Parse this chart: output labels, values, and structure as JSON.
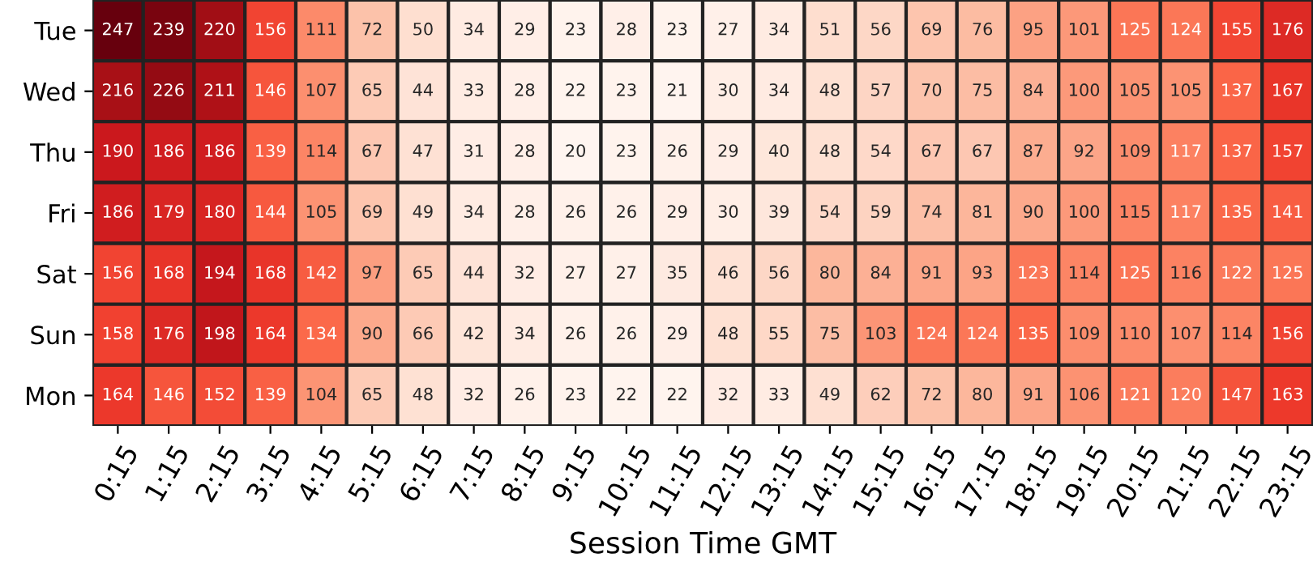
{
  "chart_data": {
    "type": "heatmap",
    "xlabel": "Session Time GMT",
    "categories": [
      "0:15",
      "1:15",
      "2:15",
      "3:15",
      "4:15",
      "5:15",
      "6:15",
      "7:15",
      "8:15",
      "9:15",
      "10:15",
      "11:15",
      "12:15",
      "13:15",
      "14:15",
      "15:15",
      "16:15",
      "17:15",
      "18:15",
      "19:15",
      "20:15",
      "21:15",
      "22:15",
      "23:15"
    ],
    "y_categories": [
      "Tue",
      "Wed",
      "Thu",
      "Fri",
      "Sat",
      "Sun",
      "Mon"
    ],
    "cells": [
      [
        247,
        239,
        220,
        156,
        111,
        72,
        50,
        34,
        29,
        23,
        28,
        23,
        27,
        34,
        51,
        56,
        69,
        76,
        95,
        101,
        125,
        124,
        155,
        176
      ],
      [
        216,
        226,
        211,
        146,
        107,
        65,
        44,
        33,
        28,
        22,
        23,
        21,
        30,
        34,
        48,
        57,
        70,
        75,
        84,
        100,
        105,
        105,
        137,
        167
      ],
      [
        190,
        186,
        186,
        139,
        114,
        67,
        47,
        31,
        28,
        20,
        23,
        26,
        29,
        40,
        48,
        54,
        67,
        67,
        87,
        92,
        109,
        117,
        137,
        157
      ],
      [
        186,
        179,
        180,
        144,
        105,
        69,
        49,
        34,
        28,
        26,
        26,
        29,
        30,
        39,
        54,
        59,
        74,
        81,
        90,
        100,
        115,
        117,
        135,
        141
      ],
      [
        156,
        168,
        194,
        168,
        142,
        97,
        65,
        44,
        32,
        27,
        27,
        35,
        46,
        56,
        80,
        84,
        91,
        93,
        123,
        114,
        125,
        116,
        122,
        125
      ],
      [
        158,
        176,
        198,
        164,
        134,
        90,
        66,
        42,
        34,
        26,
        26,
        29,
        48,
        55,
        75,
        103,
        124,
        124,
        135,
        109,
        110,
        107,
        114,
        156
      ],
      [
        164,
        146,
        152,
        139,
        104,
        65,
        48,
        32,
        26,
        23,
        22,
        22,
        32,
        33,
        49,
        62,
        72,
        80,
        91,
        106,
        121,
        120,
        147,
        163
      ]
    ],
    "data_labels": true
  }
}
